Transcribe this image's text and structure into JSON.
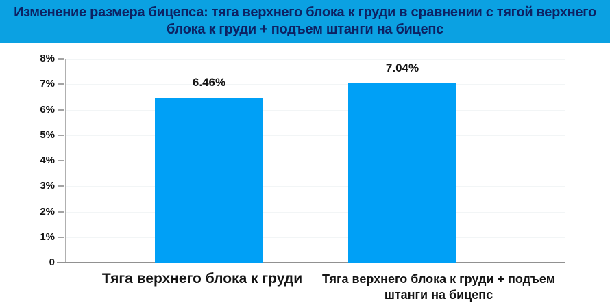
{
  "title": {
    "text": "Изменение размера бицепса: тяга верхнего блока к груди в сравнении с тягой верхнего блока к груди + подъем штанги на бицепс"
  },
  "colors": {
    "title_bg": "#0ba1e2",
    "title_text": "#0d2263",
    "bar": "#00a0f6",
    "axis_line": "#919191",
    "gridline": "#f2f5f6",
    "text": "#141414"
  },
  "y_axis": {
    "ticks": [
      "8%",
      "7%",
      "6%",
      "5%",
      "4%",
      "3%",
      "2%",
      "1%",
      "0"
    ]
  },
  "bars": [
    {
      "category": "Тяга верхнего блока к груди",
      "value": 6.46,
      "value_label": "6.46%"
    },
    {
      "category": "Тяга верхнего блока к груди + подъем штанги на бицепс",
      "value": 7.04,
      "value_label": "7.04%"
    }
  ],
  "chart_data": {
    "type": "bar",
    "title": "Изменение размера бицепса: тяга верхнего блока к груди в сравнении с тягой верхнего блока к груди + подъем штанги на бицепс",
    "categories": [
      "Тяга верхнего блока к груди",
      "Тяга верхнего блока к груди + подъем штанги на бицепс"
    ],
    "values": [
      6.46,
      7.04
    ],
    "data_labels": [
      "6.46%",
      "7.04%"
    ],
    "xlabel": "",
    "ylabel": "",
    "ylim": [
      0,
      8
    ],
    "ytick_labels": [
      "0",
      "1%",
      "2%",
      "3%",
      "4%",
      "5%",
      "6%",
      "7%",
      "8%"
    ],
    "grid": true,
    "legend": "none",
    "bar_color": "#00a0f6"
  }
}
